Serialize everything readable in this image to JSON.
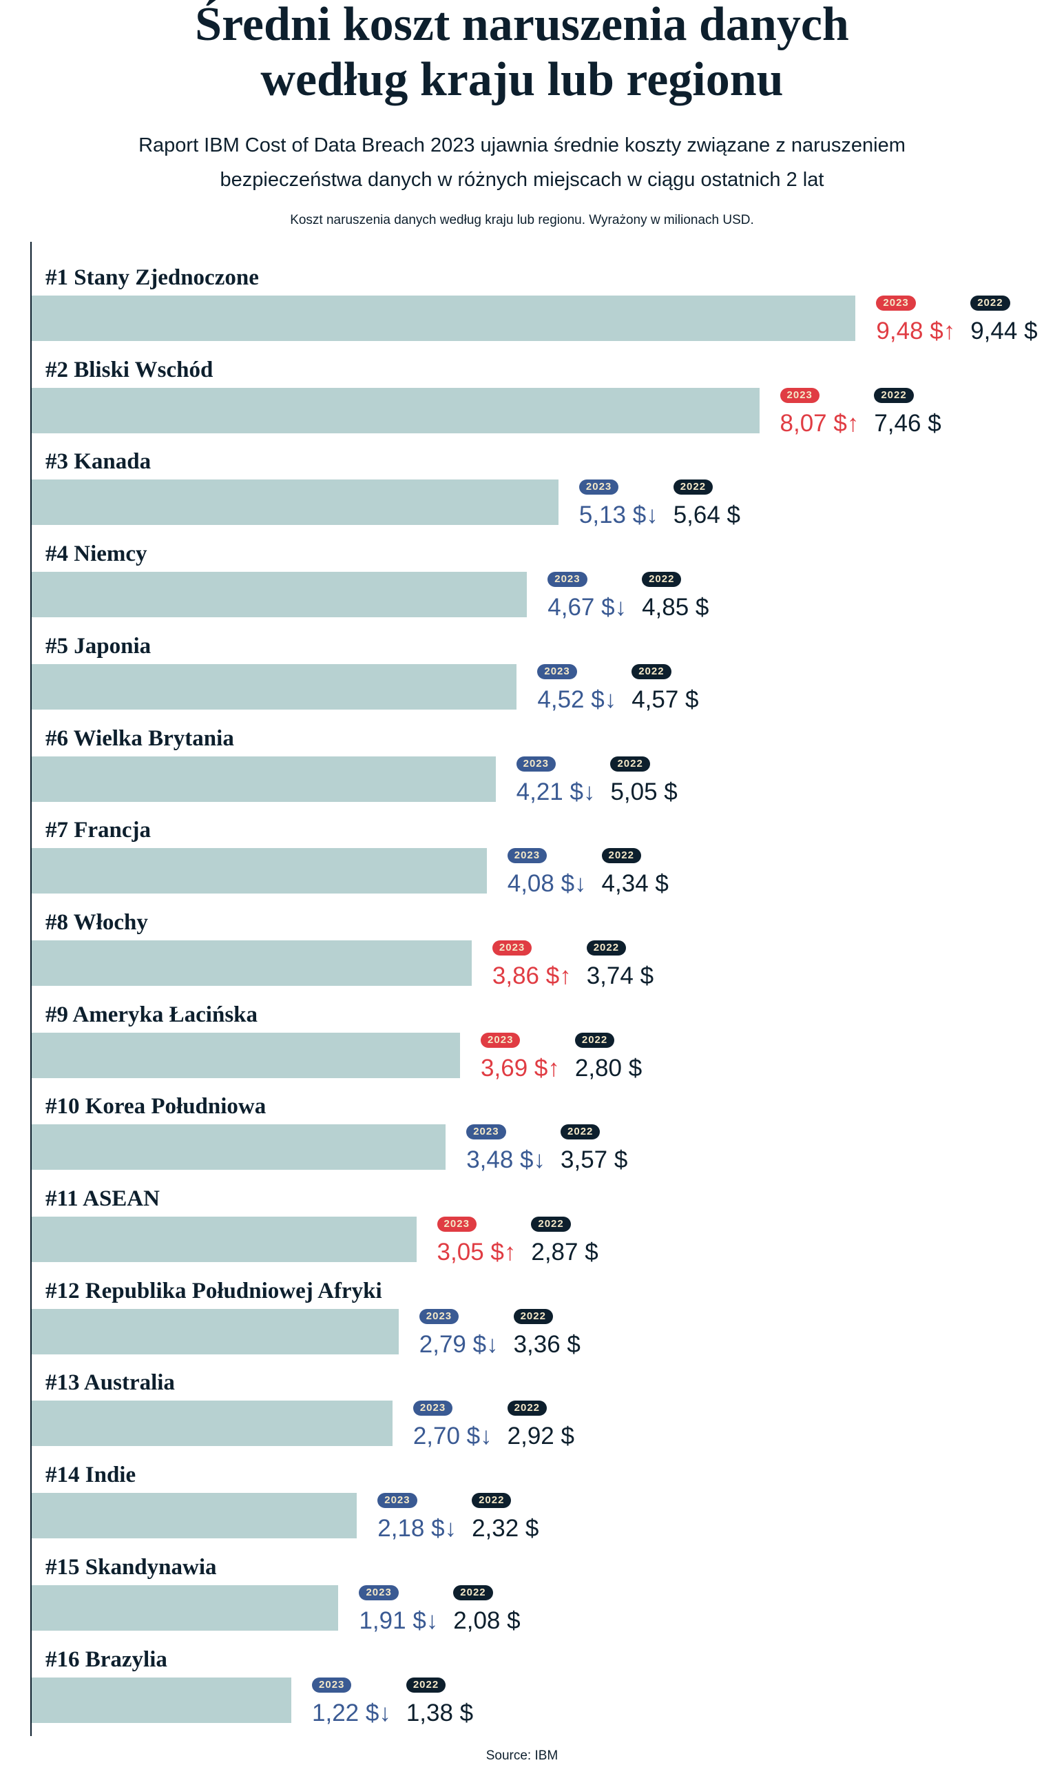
{
  "title_line1": "Średni koszt naruszenia danych",
  "title_line2": "według kraju lub regionu",
  "subtitle_line1": "Raport IBM Cost of Data Breach 2023 ujawnia średnie koszty związane z naruszeniem",
  "subtitle_line2": "bezpieczeństwa danych w różnych miejscach w ciągu ostatnich 2 lat",
  "note": "Koszt naruszenia danych według kraju lub regionu. Wyrażony w milionach USD.",
  "source": "Source: IBM",
  "colors": {
    "bar": "#b7d1d1",
    "increase": "#e03c43",
    "decrease": "#3a5a93",
    "prior_year": "#0d1f2d",
    "badge_text": "#f4e8c8"
  },
  "chart_data": {
    "type": "bar",
    "orientation": "horizontal",
    "series_labels": [
      "2023",
      "2022"
    ],
    "unit": "$",
    "categories": [
      "#1 Stany Zjednoczone",
      "#2 Bliski Wschód",
      "#3 Kanada",
      "#4 Niemcy",
      "#5 Japonia",
      "#6 Wielka Brytania",
      "#7 Francja",
      "#8 Włochy",
      "#9 Ameryka Łacińska",
      "#10 Korea Południowa",
      "#11 ASEAN",
      "#12 Republika Południowej Afryki",
      "#13 Australia",
      "#14 Indie",
      "#15 Skandynawia",
      "#16 Brazylia"
    ],
    "values_2023": [
      9.48,
      8.07,
      5.13,
      4.67,
      4.52,
      4.21,
      4.08,
      3.86,
      3.69,
      3.48,
      3.05,
      2.79,
      2.7,
      2.18,
      1.91,
      1.22
    ],
    "values_2022": [
      9.44,
      7.46,
      5.64,
      4.85,
      4.57,
      5.05,
      4.34,
      3.74,
      2.8,
      3.57,
      2.87,
      3.36,
      2.92,
      2.32,
      2.08,
      1.38
    ],
    "labels_2023": [
      "9,48 $",
      "8,07 $",
      "5,13 $",
      "4,67 $",
      "4,52 $",
      "4,21 $",
      "4,08 $",
      "3,86 $",
      "3,69 $",
      "3,48 $",
      "3,05 $",
      "2,79 $",
      "2,70 $",
      "2,18 $",
      "1,91 $",
      "1,22 $"
    ],
    "labels_2022": [
      "9,44 $",
      "7,46 $",
      "5,64 $",
      "4,85 $",
      "4,57 $",
      "5,05 $",
      "4,34 $",
      "3,74 $",
      "2,80 $",
      "3,57 $",
      "2,87 $",
      "3,36 $",
      "2,92 $",
      "2,32 $",
      "2,08 $",
      "1,38 $"
    ],
    "grid": false
  }
}
